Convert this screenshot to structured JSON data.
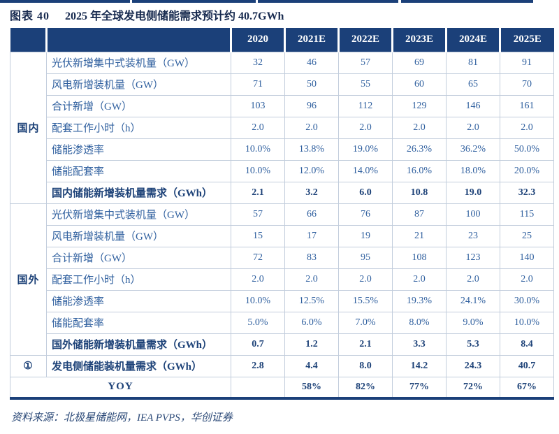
{
  "page": {
    "figure_label": "图表 40",
    "title": "2025 年全球发电侧储能需求预计约 40.7GWh",
    "source": "资料来源：北极星储能网，IEA PVPS，华创证券"
  },
  "table": {
    "columns": [
      "2020",
      "2021E",
      "2022E",
      "2023E",
      "2024E",
      "2025E"
    ],
    "sections": [
      {
        "group": "国内",
        "rows": [
          {
            "label": "光伏新增集中式装机量（GW）",
            "values": [
              "32",
              "46",
              "57",
              "69",
              "81",
              "91"
            ],
            "bold": false
          },
          {
            "label": "风电新增装机量（GW）",
            "values": [
              "71",
              "50",
              "55",
              "60",
              "65",
              "70"
            ],
            "bold": false
          },
          {
            "label": "合计新增（GW）",
            "values": [
              "103",
              "96",
              "112",
              "129",
              "146",
              "161"
            ],
            "bold": false
          },
          {
            "label": "配套工作小时（h）",
            "values": [
              "2.0",
              "2.0",
              "2.0",
              "2.0",
              "2.0",
              "2.0"
            ],
            "bold": false
          },
          {
            "label": "储能渗透率",
            "values": [
              "10.0%",
              "13.8%",
              "19.0%",
              "26.3%",
              "36.2%",
              "50.0%"
            ],
            "bold": false
          },
          {
            "label": "储能配套率",
            "values": [
              "10.0%",
              "12.0%",
              "14.0%",
              "16.0%",
              "18.0%",
              "20.0%"
            ],
            "bold": false
          },
          {
            "label": "国内储能新增装机量需求（GWh）",
            "values": [
              "2.1",
              "3.2",
              "6.0",
              "10.8",
              "19.0",
              "32.3"
            ],
            "bold": true
          }
        ]
      },
      {
        "group": "国外",
        "rows": [
          {
            "label": "光伏新增集中式装机量（GW）",
            "values": [
              "57",
              "66",
              "76",
              "87",
              "100",
              "115"
            ],
            "bold": false
          },
          {
            "label": "风电新增装机量（GW）",
            "values": [
              "15",
              "17",
              "19",
              "21",
              "23",
              "25"
            ],
            "bold": false
          },
          {
            "label": "合计新增（GW）",
            "values": [
              "72",
              "83",
              "95",
              "108",
              "123",
              "140"
            ],
            "bold": false
          },
          {
            "label": "配套工作小时（h）",
            "values": [
              "2.0",
              "2.0",
              "2.0",
              "2.0",
              "2.0",
              "2.0"
            ],
            "bold": false
          },
          {
            "label": "储能渗透率",
            "values": [
              "10.0%",
              "12.5%",
              "15.5%",
              "19.3%",
              "24.1%",
              "30.0%"
            ],
            "bold": false
          },
          {
            "label": "储能配套率",
            "values": [
              "5.0%",
              "6.0%",
              "7.0%",
              "8.0%",
              "9.0%",
              "10.0%"
            ],
            "bold": false
          },
          {
            "label": "国外储能新增装机量需求（GWh）",
            "values": [
              "0.7",
              "1.2",
              "2.1",
              "3.3",
              "5.3",
              "8.4"
            ],
            "bold": true
          }
        ]
      }
    ],
    "total_row": {
      "group": "①",
      "label": "发电侧储能装机量需求（GWh）",
      "values": [
        "2.8",
        "4.4",
        "8.0",
        "14.2",
        "24.3",
        "40.7"
      ],
      "bold": true
    },
    "yoy_row": {
      "label": "YOY",
      "values": [
        "",
        "58%",
        "82%",
        "77%",
        "72%",
        "67%"
      ],
      "bold": true
    }
  },
  "colors": {
    "header_bg": "#1b4079",
    "header_text": "#ffffff",
    "grid_line": "#c2cddc",
    "text_regular": "#30609f",
    "text_bold": "#1d4278",
    "title_text": "#16294e",
    "source_text": "#2c4a78"
  }
}
